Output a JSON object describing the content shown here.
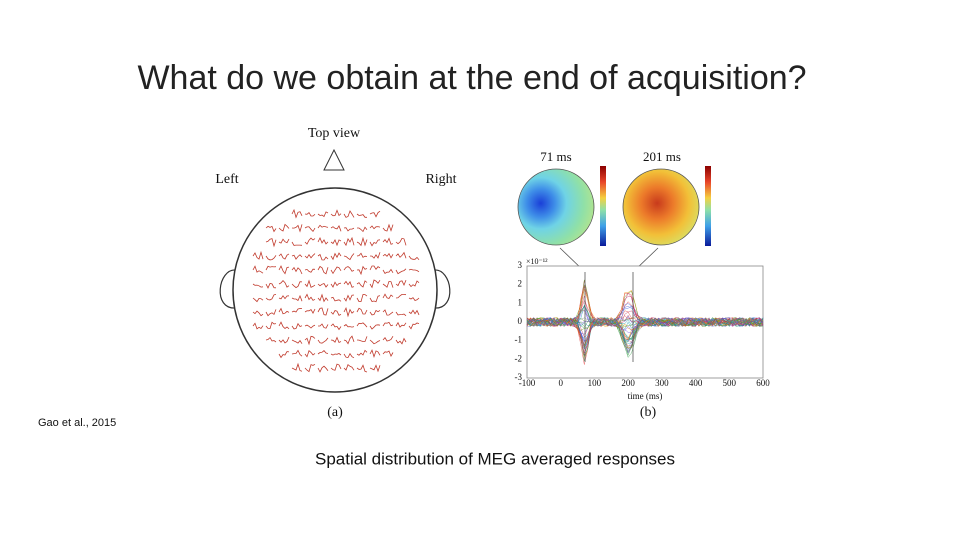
{
  "slide": {
    "title": "What do we obtain at the end of acquisition?",
    "citation": "Gao et al., 2015",
    "caption": "Spatial distribution of MEG averaged responses",
    "figure": {
      "panel_a": {
        "heading": "Top view",
        "left": "Left",
        "right": "Right",
        "label": "(a)"
      },
      "panel_b": {
        "maps": [
          "71 ms",
          "201 ms"
        ],
        "y_scale": "×10⁻¹²",
        "xticks": [
          -100,
          0,
          100,
          200,
          300,
          400,
          500,
          600
        ],
        "yticks": [
          3,
          2,
          1,
          0,
          -1,
          -2,
          -3
        ],
        "xlabel": "time (ms)",
        "label": "(b)"
      }
    }
  }
}
